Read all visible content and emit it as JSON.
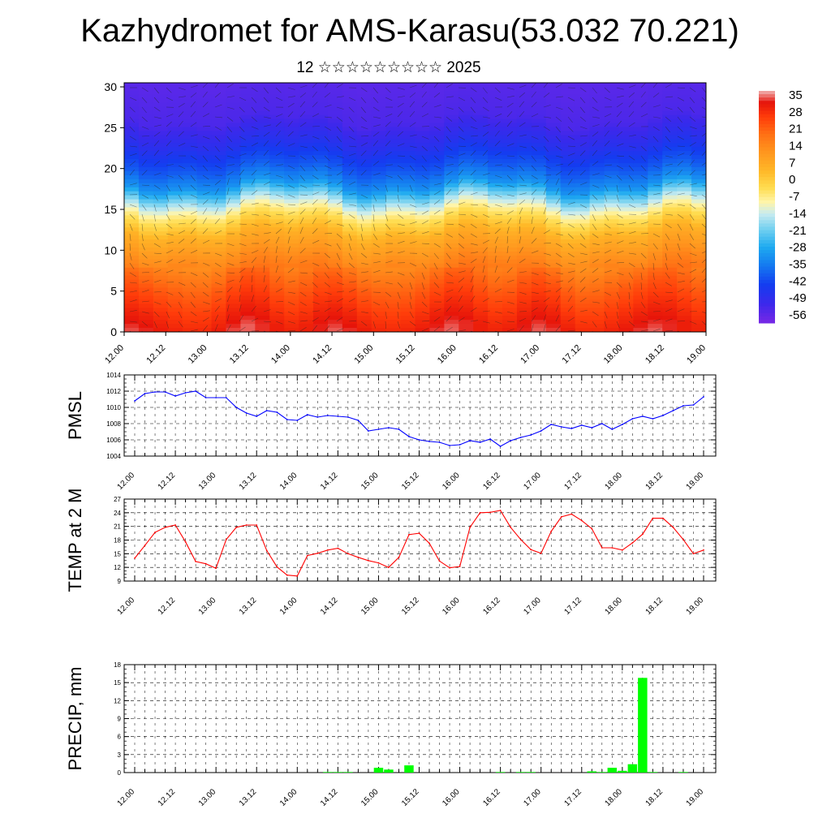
{
  "page": {
    "title": "Kazhydromet for AMS-Karasu(53.032 70.221)",
    "subtitle": "12 ☆☆☆☆☆☆☆☆☆ 2025"
  },
  "chart_data": [
    {
      "type": "heatmap",
      "name": "cross-section",
      "x_tick_labels": [
        "12.00",
        "12.12",
        "13.00",
        "13.12",
        "14.00",
        "14.12",
        "15.00",
        "15.12",
        "16.00",
        "16.12",
        "17.00",
        "17.12",
        "18.00",
        "18.12",
        "19.00"
      ],
      "y_ticks": [
        0,
        5,
        10,
        15,
        20,
        25,
        30
      ],
      "ylim": [
        0,
        30.5
      ],
      "colorbar_labels": [
        "35",
        "28",
        "21",
        "14",
        "7",
        "0",
        "-7",
        "-14",
        "-21",
        "-28",
        "-35",
        "-42",
        "-49",
        "-56"
      ],
      "colorbar_range": [
        -60,
        38
      ],
      "temperature_profile_by_height": [
        [
          0,
          33
        ],
        [
          3,
          28
        ],
        [
          6,
          22
        ],
        [
          9,
          14
        ],
        [
          12,
          6
        ],
        [
          14.5,
          -6
        ],
        [
          16,
          -16
        ],
        [
          18,
          -32
        ],
        [
          20,
          -40
        ],
        [
          23,
          -48
        ],
        [
          26,
          -54
        ],
        [
          30.5,
          -56
        ]
      ]
    },
    {
      "type": "line",
      "ylabel": "PMSL",
      "color": "#0000ff",
      "ylim": [
        1004,
        1014
      ],
      "y_ticks": [
        1004,
        1006,
        1008,
        1010,
        1012,
        1014
      ],
      "x_tick_labels": [
        "12.00",
        "12.12",
        "13.00",
        "13.12",
        "14.00",
        "14.12",
        "15.00",
        "15.12",
        "16.00",
        "16.12",
        "17.00",
        "17.12",
        "18.00",
        "18.12",
        "19.00"
      ],
      "values": [
        1010.8,
        1011.7,
        1011.9,
        1011.9,
        1011.4,
        1011.8,
        1012.0,
        1011.2,
        1011.2,
        1011.2,
        1010.0,
        1009.3,
        1008.9,
        1009.6,
        1009.4,
        1008.5,
        1008.4,
        1009.1,
        1008.8,
        1009.0,
        1008.9,
        1008.8,
        1008.4,
        1007.1,
        1007.3,
        1007.5,
        1007.3,
        1006.4,
        1006.0,
        1005.8,
        1005.7,
        1005.3,
        1005.4,
        1005.9,
        1005.7,
        1006.1,
        1005.2,
        1005.9,
        1006.3,
        1006.6,
        1007.1,
        1007.9,
        1007.6,
        1007.4,
        1007.8,
        1007.5,
        1008.0,
        1007.3,
        1007.9,
        1008.6,
        1008.9,
        1008.6,
        1009.0,
        1009.6,
        1010.2,
        1010.3,
        1011.3
      ]
    },
    {
      "type": "line",
      "ylabel": "TEMP at 2 M",
      "color": "#ff0000",
      "ylim": [
        9,
        27
      ],
      "y_ticks": [
        9,
        12,
        15,
        18,
        21,
        24,
        27
      ],
      "x_tick_labels": [
        "12.00",
        "12.12",
        "13.00",
        "13.12",
        "14.00",
        "14.12",
        "15.00",
        "15.12",
        "16.00",
        "16.12",
        "17.00",
        "17.12",
        "18.00",
        "18.12",
        "19.00"
      ],
      "values": [
        14.0,
        16.8,
        19.7,
        20.8,
        21.3,
        17.6,
        13.3,
        12.8,
        11.8,
        18.1,
        20.8,
        21.3,
        21.3,
        15.7,
        12.1,
        10.3,
        10.1,
        14.6,
        15.1,
        15.8,
        16.2,
        15.0,
        14.2,
        13.5,
        13.0,
        12.0,
        14.2,
        19.2,
        19.5,
        17.3,
        13.4,
        11.9,
        12.2,
        20.8,
        24.0,
        24.1,
        24.5,
        20.8,
        18.1,
        15.9,
        15.1,
        19.9,
        23.1,
        23.7,
        22.3,
        20.5,
        16.3,
        16.3,
        15.8,
        17.4,
        19.3,
        22.8,
        22.8,
        20.8,
        18.1,
        15.0,
        15.8
      ]
    },
    {
      "type": "bar",
      "ylabel": "PRECIP, mm",
      "color": "#00ff00",
      "ylim": [
        0,
        18
      ],
      "y_ticks": [
        0,
        3,
        6,
        9,
        12,
        15,
        18
      ],
      "x_tick_labels": [
        "12.00",
        "12.12",
        "13.00",
        "13.12",
        "14.00",
        "14.12",
        "15.00",
        "15.12",
        "16.00",
        "16.12",
        "17.00",
        "17.12",
        "18.00",
        "18.12",
        "19.00"
      ],
      "values": [
        0,
        0,
        0,
        0,
        0,
        0,
        0,
        0,
        0,
        0,
        0,
        0,
        0,
        0,
        0,
        0,
        0,
        0,
        0,
        0.1,
        0.1,
        0.1,
        0,
        0,
        0.8,
        0.5,
        0,
        1.2,
        0,
        0,
        0,
        0,
        0,
        0,
        0,
        0,
        0.1,
        0,
        0.1,
        0.1,
        0,
        0,
        0,
        0,
        0,
        0.2,
        0.1,
        0.8,
        0.3,
        1.4,
        15.8,
        0.1,
        0,
        0,
        0.1,
        0,
        0,
        0
      ]
    }
  ]
}
